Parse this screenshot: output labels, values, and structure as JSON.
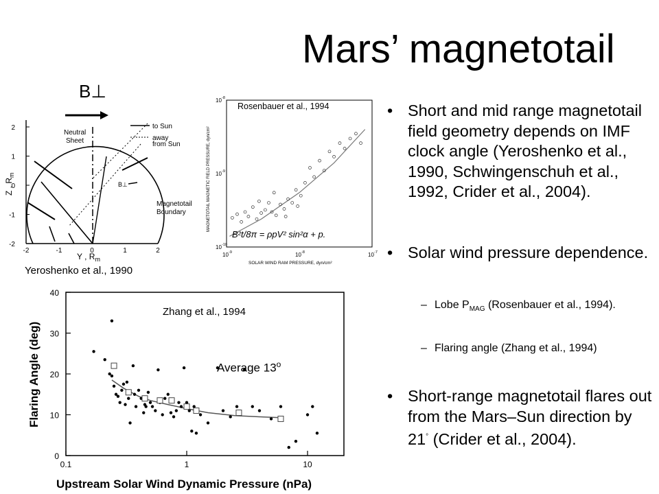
{
  "slide": {
    "title": "Mars’ magnetotail",
    "b_perp_label": "B⊥",
    "captions": {
      "yeroshenko": "Yeroshenko et al., 1990",
      "rosenbauer": "Rosenbauer et al., 1994",
      "zhang": "Zhang et al., 1994"
    },
    "average_label": "Average 13",
    "average_sup": "o",
    "bullets": [
      "Short and mid range magnetotail field geometry depends on IMF clock angle (Yeroshenko et al., 1990, Schwingenschuh et al., 1992, Crider et al., 2004).",
      "Solar wind pressure dependence."
    ],
    "sub_bullets": {
      "lobe_pre": "Lobe P",
      "lobe_sub": "MAG",
      "lobe_post": " (Rosenbauer et al., 1994).",
      "flaring": "Flaring angle (Zhang et al., 1994)"
    },
    "bullet3_pre": "Short-range magnetotail flares out from the Mars–Sun direction by 21",
    "bullet3_sup": "°",
    "bullet3_post": " (Crider et al., 2004).",
    "bullet_glyph": "•",
    "dash_glyph": "–"
  },
  "chart_data": [
    {
      "type": "diagram",
      "xlabel": "Y , Rm",
      "ylabel": "Z , Rm",
      "xlim": [
        -2,
        2
      ],
      "ylim": [
        -2,
        2
      ],
      "x_ticks": [
        "-2",
        "-1",
        "0",
        "1",
        "2"
      ],
      "y_ticks": [
        "2",
        "1",
        "0",
        "-1",
        "-2"
      ],
      "legend": [
        "to Sun",
        "away from Sun"
      ],
      "labels": [
        "Neutral Sheet",
        "B⊥",
        "Magnetotail Boundary"
      ]
    },
    {
      "type": "scatter",
      "xlabel": "SOLAR WIND RAM PRESSURE, dyn/cm²",
      "ylabel": "MAGNETOTAIL MAGNETIC FIELD PRESSURE, dyn/cm²",
      "x_scale": "log",
      "y_scale": "log",
      "xlim": [
        1e-09,
        1e-07
      ],
      "ylim": [
        1e-10,
        1e-08
      ],
      "x_ticks": [
        "10",
        "10",
        "10"
      ],
      "x_tick_exps": [
        "-9",
        "-8",
        "-7"
      ],
      "y_ticks": [
        "10",
        "10",
        "10"
      ],
      "y_tick_exps": [
        "-8",
        "-9",
        "-10"
      ],
      "equation": "B²t/8π = ρpV² sin²α + p.",
      "fit_curve": {
        "x": [
          1.1e-09,
          3e-09,
          1e-08,
          3e-08,
          8e-08
        ],
        "y": [
          1.4e-10,
          2.4e-10,
          5.5e-10,
          1.4e-09,
          4e-09
        ]
      },
      "points": {
        "x": [
          1.2e-09,
          1.4e-09,
          1.6e-09,
          1.8e-09,
          2e-09,
          2.3e-09,
          2.6e-09,
          3e-09,
          3.4e-09,
          3.8e-09,
          4.2e-09,
          4.8e-09,
          5.5e-09,
          6.2e-09,
          7e-09,
          8e-09,
          9e-09,
          1.05e-08,
          1.2e-08,
          1.4e-08,
          1.6e-08,
          1.9e-08,
          2.2e-08,
          2.6e-08,
          3e-08,
          3.6e-08,
          4.2e-08,
          5e-08,
          6e-08,
          7e-08,
          2.8e-09,
          4.5e-09,
          6.5e-09,
          9.5e-09
        ],
        "y": [
          2.5e-10,
          2.8e-10,
          2.2e-10,
          3e-10,
          2.6e-10,
          3.5e-10,
          2.4e-10,
          2.9e-10,
          3.2e-10,
          4e-10,
          3e-10,
          2.7e-10,
          3.8e-10,
          3.3e-10,
          4.5e-10,
          4e-10,
          6e-10,
          5e-10,
          7.5e-10,
          1.2e-09,
          9e-10,
          1.5e-09,
          1.1e-09,
          2e-09,
          1.7e-09,
          2.6e-09,
          2.2e-09,
          3e-09,
          3.5e-09,
          2.6e-09,
          4.2e-10,
          5.5e-10,
          2.6e-10,
          3.6e-10
        ]
      }
    },
    {
      "type": "scatter",
      "xlabel": "Upstream Solar Wind Dynamic Pressure (nPa)",
      "ylabel": "Flaring Angle (deg)",
      "x_scale": "log",
      "xlim": [
        0.1,
        20
      ],
      "ylim": [
        0,
        40
      ],
      "x_ticks": [
        0.1,
        1,
        10
      ],
      "y_ticks": [
        0,
        10,
        20,
        30,
        40
      ],
      "dots": {
        "x": [
          0.17,
          0.21,
          0.23,
          0.24,
          0.25,
          0.26,
          0.27,
          0.28,
          0.29,
          0.3,
          0.31,
          0.32,
          0.33,
          0.34,
          0.36,
          0.37,
          0.38,
          0.4,
          0.42,
          0.44,
          0.46,
          0.48,
          0.5,
          0.52,
          0.55,
          0.58,
          0.6,
          0.63,
          0.66,
          0.7,
          0.74,
          0.78,
          0.82,
          0.86,
          0.9,
          0.95,
          1.0,
          1.05,
          1.1,
          1.15,
          1.2,
          1.3,
          1.5,
          1.8,
          2.0,
          2.3,
          2.6,
          3.0,
          3.5,
          4.0,
          5.0,
          6.0,
          7.0,
          8.0,
          10.0,
          11.0,
          12.0,
          0.24,
          0.45
        ],
        "y": [
          25.5,
          23.5,
          20,
          33,
          17,
          15,
          14.5,
          13,
          16,
          17.5,
          12.5,
          18,
          14,
          8,
          22,
          15,
          12,
          16,
          14,
          10.5,
          12,
          15.5,
          13,
          12,
          11,
          21,
          13,
          10,
          14,
          15,
          10.5,
          9.5,
          11,
          13,
          12,
          21.5,
          13,
          11,
          6,
          12,
          5.5,
          10,
          8,
          21.5,
          11,
          9.5,
          12,
          21,
          12,
          11,
          9,
          12,
          2,
          3.5,
          10,
          12,
          5.5,
          19.5,
          12.5
        ]
      },
      "squares": {
        "x": [
          0.25,
          0.33,
          0.45,
          0.6,
          0.75,
          1.0,
          1.2,
          2.7,
          6.0
        ],
        "y": [
          22,
          15.5,
          14,
          13.5,
          13.5,
          12,
          11,
          10.5,
          9
        ]
      },
      "fit_curve": {
        "x": [
          0.24,
          0.3,
          0.4,
          0.5,
          0.7,
          1.0,
          1.5,
          2.5,
          4.0,
          6.0
        ],
        "y": [
          18.5,
          16.5,
          14.5,
          13.5,
          12.5,
          11.5,
          10.5,
          9.8,
          9.5,
          9.3
        ]
      }
    }
  ]
}
